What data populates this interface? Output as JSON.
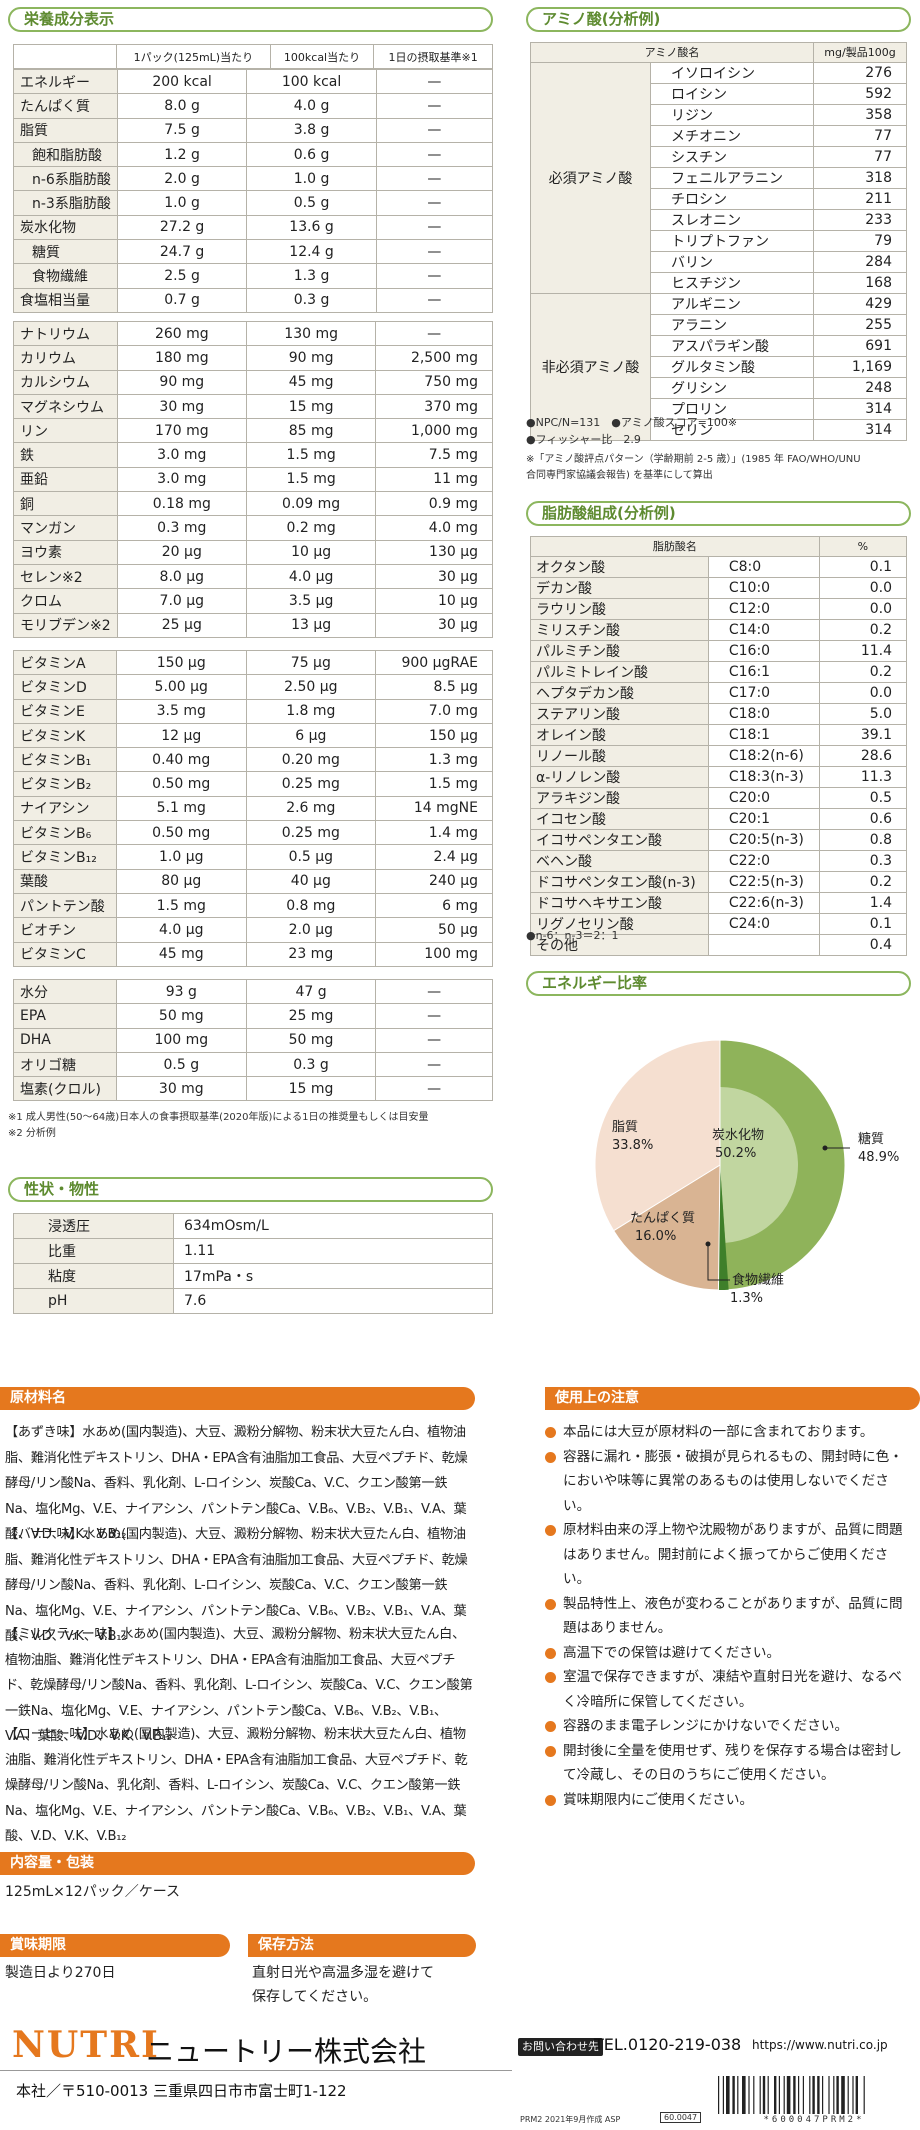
{
  "nutrition": {
    "title": "栄養成分表示",
    "headers": [
      "",
      "1パック(125mL)当たり",
      "100kcal当たり",
      "1日の摂取基準※1"
    ],
    "g1": [
      {
        "n": "エネルギー",
        "a": "200 kcal",
        "b": "100 kcal",
        "c": "—",
        "in": false
      },
      {
        "n": "たんぱく質",
        "a": "8.0 g",
        "b": "4.0 g",
        "c": "—",
        "in": false
      },
      {
        "n": "脂質",
        "a": "7.5 g",
        "b": "3.8 g",
        "c": "—",
        "in": false
      },
      {
        "n": "飽和脂肪酸",
        "a": "1.2 g",
        "b": "0.6 g",
        "c": "—",
        "in": true
      },
      {
        "n": "n-6系脂肪酸",
        "a": "2.0 g",
        "b": "1.0 g",
        "c": "—",
        "in": true
      },
      {
        "n": "n-3系脂肪酸",
        "a": "1.0 g",
        "b": "0.5 g",
        "c": "—",
        "in": true
      },
      {
        "n": "炭水化物",
        "a": "27.2 g",
        "b": "13.6 g",
        "c": "—",
        "in": false
      },
      {
        "n": "糖質",
        "a": "24.7 g",
        "b": "12.4 g",
        "c": "—",
        "in": true
      },
      {
        "n": "食物繊維",
        "a": "2.5 g",
        "b": "1.3 g",
        "c": "—",
        "in": true
      },
      {
        "n": "食塩相当量",
        "a": "0.7 g",
        "b": "0.3 g",
        "c": "—",
        "in": false
      }
    ],
    "g2": [
      {
        "n": "ナトリウム",
        "a": "260 mg",
        "b": "130 mg",
        "c": "—"
      },
      {
        "n": "カリウム",
        "a": "180 mg",
        "b": "90 mg",
        "c": "2,500 mg"
      },
      {
        "n": "カルシウム",
        "a": "90 mg",
        "b": "45 mg",
        "c": "750 mg"
      },
      {
        "n": "マグネシウム",
        "a": "30 mg",
        "b": "15 mg",
        "c": "370 mg"
      },
      {
        "n": "リン",
        "a": "170 mg",
        "b": "85 mg",
        "c": "1,000 mg"
      },
      {
        "n": "鉄",
        "a": "3.0 mg",
        "b": "1.5 mg",
        "c": "7.5 mg"
      },
      {
        "n": "亜鉛",
        "a": "3.0 mg",
        "b": "1.5 mg",
        "c": "11 mg"
      },
      {
        "n": "銅",
        "a": "0.18 mg",
        "b": "0.09 mg",
        "c": "0.9 mg"
      },
      {
        "n": "マンガン",
        "a": "0.3 mg",
        "b": "0.2 mg",
        "c": "4.0 mg"
      },
      {
        "n": "ヨウ素",
        "a": "20 μg",
        "b": "10 μg",
        "c": "130 μg"
      },
      {
        "n": "セレン※2",
        "a": "8.0 μg",
        "b": "4.0 μg",
        "c": "30 μg"
      },
      {
        "n": "クロム",
        "a": "7.0 μg",
        "b": "3.5 μg",
        "c": "10 μg"
      },
      {
        "n": "モリブデン※2",
        "a": "25 μg",
        "b": "13 μg",
        "c": "30 μg"
      }
    ],
    "g3": [
      {
        "n": "ビタミンA",
        "a": "150 μg",
        "b": "75 μg",
        "c": "900 μgRAE"
      },
      {
        "n": "ビタミンD",
        "a": "5.00 μg",
        "b": "2.50 μg",
        "c": "8.5 μg"
      },
      {
        "n": "ビタミンE",
        "a": "3.5 mg",
        "b": "1.8 mg",
        "c": "7.0 mg"
      },
      {
        "n": "ビタミンK",
        "a": "12 μg",
        "b": "6 μg",
        "c": "150 μg"
      },
      {
        "n": "ビタミンB₁",
        "a": "0.40 mg",
        "b": "0.20 mg",
        "c": "1.3 mg"
      },
      {
        "n": "ビタミンB₂",
        "a": "0.50 mg",
        "b": "0.25 mg",
        "c": "1.5 mg"
      },
      {
        "n": "ナイアシン",
        "a": "5.1 mg",
        "b": "2.6 mg",
        "c": "14 mgNE"
      },
      {
        "n": "ビタミンB₆",
        "a": "0.50 mg",
        "b": "0.25 mg",
        "c": "1.4 mg"
      },
      {
        "n": "ビタミンB₁₂",
        "a": "1.0 μg",
        "b": "0.5 μg",
        "c": "2.4 μg"
      },
      {
        "n": "葉酸",
        "a": "80 μg",
        "b": "40 μg",
        "c": "240 μg"
      },
      {
        "n": "パントテン酸",
        "a": "1.5 mg",
        "b": "0.8 mg",
        "c": "6 mg"
      },
      {
        "n": "ビオチン",
        "a": "4.0 μg",
        "b": "2.0 μg",
        "c": "50 μg"
      },
      {
        "n": "ビタミンC",
        "a": "45 mg",
        "b": "23 mg",
        "c": "100 mg"
      }
    ],
    "g4": [
      {
        "n": "水分",
        "a": "93 g",
        "b": "47 g",
        "c": "—"
      },
      {
        "n": "EPA",
        "a": "50 mg",
        "b": "25 mg",
        "c": "—"
      },
      {
        "n": "DHA",
        "a": "100 mg",
        "b": "50 mg",
        "c": "—"
      },
      {
        "n": "オリゴ糖",
        "a": "0.5 g",
        "b": "0.3 g",
        "c": "—"
      },
      {
        "n": "塩素(クロル)",
        "a": "30 mg",
        "b": "15 mg",
        "c": "—"
      }
    ],
    "notes": [
      "※1 成人男性(50～64歳)日本人の食事摂取基準(2020年版)による1日の推奨量もしくは目安量",
      "※2 分析例"
    ]
  },
  "properties": {
    "title": "性状・物性",
    "rows": [
      {
        "n": "浸透圧",
        "v": "634mOsm/L"
      },
      {
        "n": "比重",
        "v": "1.11"
      },
      {
        "n": "粘度",
        "v": "17mPa・s"
      },
      {
        "n": "pH",
        "v": "7.6"
      }
    ]
  },
  "amino": {
    "title": "アミノ酸(分析例)",
    "h_name": "アミノ酸名",
    "h_val": "mg/製品100g",
    "essential_label": "必須アミノ酸",
    "essential": [
      {
        "n": "イソロイシン",
        "v": "276"
      },
      {
        "n": "ロイシン",
        "v": "592"
      },
      {
        "n": "リジン",
        "v": "358"
      },
      {
        "n": "メチオニン",
        "v": "77"
      },
      {
        "n": "シスチン",
        "v": "77"
      },
      {
        "n": "フェニルアラニン",
        "v": "318"
      },
      {
        "n": "チロシン",
        "v": "211"
      },
      {
        "n": "スレオニン",
        "v": "233"
      },
      {
        "n": "トリプトファン",
        "v": "79"
      },
      {
        "n": "バリン",
        "v": "284"
      },
      {
        "n": "ヒスチジン",
        "v": "168"
      }
    ],
    "nonessential_label": "非必須アミノ酸",
    "nonessential": [
      {
        "n": "アルギニン",
        "v": "429"
      },
      {
        "n": "アラニン",
        "v": "255"
      },
      {
        "n": "アスパラギン酸",
        "v": "691"
      },
      {
        "n": "グルタミン酸",
        "v": "1,169"
      },
      {
        "n": "グリシン",
        "v": "248"
      },
      {
        "n": "プロリン",
        "v": "314"
      },
      {
        "n": "セリン",
        "v": "314"
      }
    ],
    "npc": "●NPC/N=131　●アミノ酸スコア=100※",
    "fischer": "●フィッシャー比　2.9",
    "note1": "※「アミノ酸評点パターン（学齢期前 2-5 歳）」(1985 年 FAO/WHO/UNU",
    "note2": "合同専門家協議会報告) を基準にして算出"
  },
  "fatty": {
    "title": "脂肪酸組成(分析例)",
    "h_name": "脂肪酸名",
    "h_val": "%",
    "rows": [
      {
        "n": "オクタン酸",
        "c": "C8:0",
        "v": "0.1"
      },
      {
        "n": "デカン酸",
        "c": "C10:0",
        "v": "0.0"
      },
      {
        "n": "ラウリン酸",
        "c": "C12:0",
        "v": "0.0"
      },
      {
        "n": "ミリスチン酸",
        "c": "C14:0",
        "v": "0.2"
      },
      {
        "n": "パルミチン酸",
        "c": "C16:0",
        "v": "11.4"
      },
      {
        "n": "パルミトレイン酸",
        "c": "C16:1",
        "v": "0.2"
      },
      {
        "n": "ヘプタデカン酸",
        "c": "C17:0",
        "v": "0.0"
      },
      {
        "n": "ステアリン酸",
        "c": "C18:0",
        "v": "5.0"
      },
      {
        "n": "オレイン酸",
        "c": "C18:1",
        "v": "39.1"
      },
      {
        "n": "リノール酸",
        "c": "C18:2(n-6)",
        "v": "28.6"
      },
      {
        "n": "α-リノレン酸",
        "c": "C18:3(n-3)",
        "v": "11.3"
      },
      {
        "n": "アラキジン酸",
        "c": "C20:0",
        "v": "0.5"
      },
      {
        "n": "イコセン酸",
        "c": "C20:1",
        "v": "0.6"
      },
      {
        "n": "イコサペンタエン酸",
        "c": "C20:5(n-3)",
        "v": "0.8"
      },
      {
        "n": "ベヘン酸",
        "c": "C22:0",
        "v": "0.3"
      },
      {
        "n": "ドコサペンタエン酸(n-3)",
        "c": "C22:5(n-3)",
        "v": "0.2"
      },
      {
        "n": "ドコサヘキサエン酸",
        "c": "C22:6(n-3)",
        "v": "1.4"
      },
      {
        "n": "リグノセリン酸",
        "c": "C24:0",
        "v": "0.1"
      },
      {
        "n": "その他",
        "c": "",
        "v": "0.4"
      }
    ],
    "ratio": "●n-6：n-3＝2：1"
  },
  "energy": {
    "title": "エネルギー比率",
    "chart_data": {
      "type": "pie",
      "slices": [
        {
          "name": "炭水化物",
          "value": 50.2,
          "color": "#8fb35a"
        },
        {
          "name": "たんぱく質",
          "value": 16.0,
          "color": "#d9b493"
        },
        {
          "name": "脂質",
          "value": 33.8,
          "color": "#f5dfd0"
        }
      ],
      "inner": [
        {
          "name": "糖質",
          "value": 48.9
        },
        {
          "name": "食物繊維",
          "value": 1.3
        }
      ]
    },
    "labels": {
      "carb": "炭水化物",
      "carb_v": "50.2%",
      "protein": "たんぱく質",
      "protein_v": "16.0%",
      "fat": "脂質",
      "fat_v": "33.8%",
      "sugar": "糖質",
      "sugar_v": "48.9%",
      "fiber": "食物繊維",
      "fiber_v": "1.3%"
    }
  },
  "ingredients": {
    "title": "原材料名",
    "paras": [
      "【あずき味】水あめ(国内製造)、大豆、澱粉分解物、粉末状大豆たん白、植物油脂、難消化性デキストリン、DHA・EPA含有油脂加工食品、大豆ペプチド、乾燥酵母/リン酸Na、香料、乳化剤、L-ロイシン、炭酸Ca、V.C、クエン酸第一鉄Na、塩化Mg、V.E、ナイアシン、パントテン酸Ca、V.B₆、V.B₂、V.B₁、V.A、葉酸、V.D、V.K、V.B₁₂",
      "【バナナ味】水あめ(国内製造)、大豆、澱粉分解物、粉末状大豆たん白、植物油脂、難消化性デキストリン、DHA・EPA含有油脂加工食品、大豆ペプチド、乾燥酵母/リン酸Na、香料、乳化剤、L-ロイシン、炭酸Ca、V.C、クエン酸第一鉄Na、塩化Mg、V.E、ナイアシン、パントテン酸Ca、V.B₆、V.B₂、V.B₁、V.A、葉酸、V.D、V.K、V.B₁₂",
      "【ミルクティー味】水あめ(国内製造)、大豆、澱粉分解物、粉末状大豆たん白、植物油脂、難消化性デキストリン、DHA・EPA含有油脂加工食品、大豆ペプチド、乾燥酵母/リン酸Na、香料、乳化剤、L-ロイシン、炭酸Ca、V.C、クエン酸第一鉄Na、塩化Mg、V.E、ナイアシン、パントテン酸Ca、V.B₆、V.B₂、V.B₁、V.A、葉酸、V.D、V.K、V.B₁₂",
      "【コーヒー味】水あめ(国内製造)、大豆、澱粉分解物、粉末状大豆たん白、植物油脂、難消化性デキストリン、DHA・EPA含有油脂加工食品、大豆ペプチド、乾燥酵母/リン酸Na、乳化剤、香料、L-ロイシン、炭酸Ca、V.C、クエン酸第一鉄Na、塩化Mg、V.E、ナイアシン、パントテン酸Ca、V.B₆、V.B₂、V.B₁、V.A、葉酸、V.D、V.K、V.B₁₂"
    ]
  },
  "precautions": {
    "title": "使用上の注意",
    "items": [
      "本品には大豆が原材料の一部に含まれております。",
      "容器に漏れ・膨張・破損が見られるもの、開封時に色・においや味等に異常のあるものは使用しないでください。",
      "原材料由来の浮上物や沈殿物がありますが、品質に問題はありません。開封前によく振ってからご使用ください。",
      "製品特性上、液色が変わることがありますが、品質に問題はありません。",
      "高温下での保管は避けてください。",
      "室温で保存できますが、凍結や直射日光を避け、なるべく冷暗所に保管してください。",
      "容器のまま電子レンジにかけないでください。",
      "開封後に全量を使用せず、残りを保存する場合は密封して冷蔵し、その日のうちにご使用ください。",
      "賞味期限内にご使用ください。"
    ]
  },
  "content": {
    "title": "内容量・包装",
    "text": "125mL×12パック／ケース"
  },
  "expiry": {
    "title": "賞味期限",
    "text": "製造日より270日"
  },
  "storage": {
    "title": "保存方法",
    "text1": "直射日光や高温多湿を避けて",
    "text2": "保存してください。"
  },
  "company": {
    "logo": "NUTRI",
    "name": "ニュートリー株式会社",
    "contact_badge": "お問い合わせ先",
    "tel": "TEL.0120-219-038",
    "url": "https://www.nutri.co.jp",
    "address": "本社／〒510-0013 三重県四日市市富士町1-122",
    "code": "PRM2 2021年9月作成  ASP",
    "code_box": "60.0047",
    "barcode_text": "*600047PRM2*"
  }
}
